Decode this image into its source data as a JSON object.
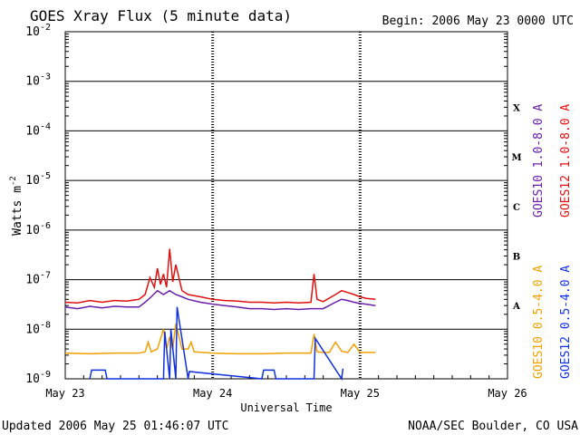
{
  "header": {
    "title": "GOES Xray Flux (5 minute data)",
    "begin": "Begin:  2006 May 23 0000 UTC"
  },
  "footer": {
    "updated": "Updated 2006 May 25 01:46:07 UTC",
    "credit": "NOAA/SEC Boulder, CO USA"
  },
  "chart_data": {
    "type": "line",
    "title": "GOES Xray Flux (5 minute data)",
    "xlabel": "Universal Time",
    "ylabel": "Watts m^-2",
    "yscale": "log",
    "ylim": [
      1e-09,
      0.01
    ],
    "xlim": [
      0,
      72
    ],
    "x_unit": "hours since 2006 May 23 0000 UTC",
    "x_ticks": [
      {
        "x": 0,
        "label": "May 23"
      },
      {
        "x": 24,
        "label": "May 24"
      },
      {
        "x": 48,
        "label": "May 25"
      },
      {
        "x": 72,
        "label": "May 26"
      }
    ],
    "y_ticks": [
      {
        "exp": -2,
        "label": "10-2"
      },
      {
        "exp": -3,
        "label": "10-3"
      },
      {
        "exp": -4,
        "label": "10-4"
      },
      {
        "exp": -5,
        "label": "10-5"
      },
      {
        "exp": -6,
        "label": "10-6"
      },
      {
        "exp": -7,
        "label": "10-7"
      },
      {
        "exp": -8,
        "label": "10-8"
      },
      {
        "exp": -9,
        "label": "10-9"
      }
    ],
    "flare_classes": [
      {
        "label": "X",
        "at": 0.0003
      },
      {
        "label": "M",
        "at": 3e-05
      },
      {
        "label": "C",
        "at": 3e-06
      },
      {
        "label": "B",
        "at": 3e-07
      },
      {
        "label": "A",
        "at": 3e-08
      }
    ],
    "legend": [
      {
        "text": "GOES10 1.0-8.0 A",
        "color": "#6a1fa8"
      },
      {
        "text": "GOES12 1.0-8.0 A",
        "color": "#e01010"
      },
      {
        "text": "GOES10 0.5-4.0 A",
        "color": "#f0a000"
      },
      {
        "text": "GOES12 0.5-4.0 A",
        "color": "#1030e0"
      }
    ],
    "series": [
      {
        "name": "GOES10 1.0-8.0 A",
        "color": "#6a1fa8",
        "x": [
          0,
          2,
          4,
          6,
          8,
          10,
          12,
          13,
          14,
          15,
          16,
          17,
          18,
          19,
          20,
          22,
          24,
          26,
          28,
          30,
          32,
          34,
          36,
          38,
          40,
          42,
          44,
          45,
          46,
          47,
          48,
          49,
          50.5
        ],
        "y": [
          2.8e-08,
          2.6e-08,
          2.9e-08,
          2.7e-08,
          2.9e-08,
          2.8e-08,
          2.8e-08,
          3.5e-08,
          4.5e-08,
          6e-08,
          5e-08,
          6e-08,
          5e-08,
          4.5e-08,
          4e-08,
          3.5e-08,
          3.2e-08,
          3e-08,
          2.8e-08,
          2.6e-08,
          2.6e-08,
          2.5e-08,
          2.6e-08,
          2.5e-08,
          2.6e-08,
          2.6e-08,
          3.5e-08,
          4e-08,
          3.8e-08,
          3.5e-08,
          3.3e-08,
          3.2e-08,
          3e-08
        ]
      },
      {
        "name": "GOES12 1.0-8.0 A",
        "color": "#e01010",
        "x": [
          0,
          2,
          4,
          6,
          8,
          10,
          12,
          13,
          13.8,
          14.5,
          15,
          15.5,
          16,
          16.5,
          17,
          17.5,
          18,
          19,
          20,
          22,
          24,
          26,
          28,
          30,
          32,
          34,
          36,
          38,
          40,
          40.5,
          41,
          42,
          44,
          45,
          46,
          47,
          48,
          49,
          50.5
        ],
        "y": [
          3.5e-08,
          3.4e-08,
          3.8e-08,
          3.5e-08,
          3.8e-08,
          3.7e-08,
          4e-08,
          5e-08,
          1.1e-07,
          7e-08,
          1.7e-07,
          8e-08,
          1.3e-07,
          7e-08,
          4.2e-07,
          9e-08,
          2e-07,
          6e-08,
          5e-08,
          4.5e-08,
          4e-08,
          3.8e-08,
          3.7e-08,
          3.5e-08,
          3.5e-08,
          3.4e-08,
          3.5e-08,
          3.4e-08,
          3.5e-08,
          1.3e-07,
          4e-08,
          3.6e-08,
          5e-08,
          6e-08,
          5.5e-08,
          5e-08,
          4.5e-08,
          4.2e-08,
          4e-08
        ]
      },
      {
        "name": "GOES10 0.5-4.0 A",
        "color": "#f0a000",
        "x": [
          0,
          4,
          8,
          12,
          13,
          13.5,
          14,
          15,
          16,
          16.5,
          17,
          17.5,
          18,
          19,
          20,
          20.5,
          21,
          24,
          28,
          32,
          36,
          40,
          40.5,
          41,
          42,
          43,
          44,
          45,
          46,
          47,
          48,
          50.5
        ],
        "y": [
          3.3e-09,
          3.2e-09,
          3.3e-09,
          3.3e-09,
          3.5e-09,
          5.5e-09,
          3.5e-09,
          4e-09,
          1e-08,
          4e-09,
          7e-09,
          4e-09,
          1.3e-08,
          4e-09,
          4e-09,
          5.5e-09,
          3.5e-09,
          3.3e-09,
          3.2e-09,
          3.2e-09,
          3.3e-09,
          3.3e-09,
          8e-09,
          3.5e-09,
          3.4e-09,
          3.4e-09,
          5.5e-09,
          3.6e-09,
          3.4e-09,
          5e-09,
          3.4e-09,
          3.4e-09
        ]
      },
      {
        "name": "GOES12 0.5-4.0 A",
        "color": "#1030e0",
        "x": [
          4,
          4.3,
          4.5,
          6.5,
          6.8,
          7,
          16,
          16.2,
          17,
          17.2,
          18,
          18.2,
          20,
          20.2,
          32,
          32.3,
          32.5,
          34,
          34.3,
          34.5,
          40.5,
          40.7,
          45,
          45.2
        ],
        "y": [
          1e-09,
          1.5e-09,
          1.5e-09,
          1.5e-09,
          1e-09,
          1e-09,
          1e-09,
          9e-09,
          1e-09,
          1e-08,
          1e-09,
          2.8e-08,
          1e-09,
          1.4e-09,
          1e-09,
          1.5e-09,
          1.5e-09,
          1.5e-09,
          1e-09,
          1e-09,
          1e-09,
          6.5e-09,
          1e-09,
          1.6e-09
        ]
      }
    ]
  }
}
